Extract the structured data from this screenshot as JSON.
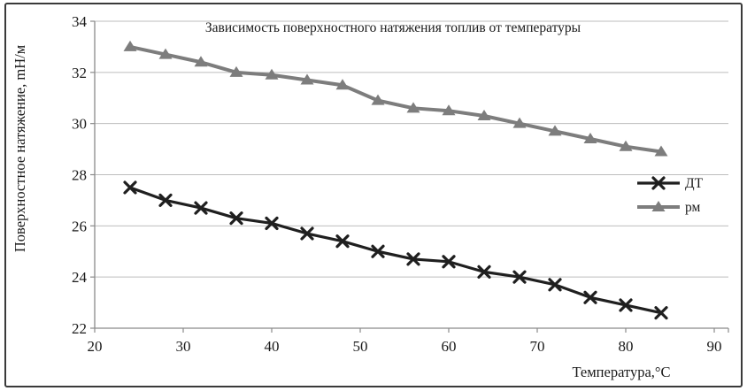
{
  "chart_data": {
    "type": "line",
    "title": "Зависимость поверхностного натяжения топлив от температуры",
    "xlabel": "Температура,°C",
    "ylabel": "Поверхностное натяжение, mH/м",
    "x": [
      24,
      28,
      32,
      36,
      40,
      44,
      48,
      52,
      56,
      60,
      64,
      68,
      72,
      76,
      80,
      84
    ],
    "series": [
      {
        "name": "ДТ",
        "marker": "x-cross",
        "color": "#1f1f1f",
        "line_width": 3.2,
        "values": [
          27.5,
          27.0,
          26.7,
          26.3,
          26.1,
          25.7,
          25.4,
          25.0,
          24.7,
          24.6,
          24.2,
          24.0,
          23.7,
          23.2,
          22.9,
          22.6
        ]
      },
      {
        "name": "рм",
        "marker": "triangle",
        "color": "#7d7d7d",
        "line_width": 4,
        "values": [
          33.0,
          32.7,
          32.4,
          32.0,
          31.9,
          31.7,
          31.5,
          30.9,
          30.6,
          30.5,
          30.3,
          30.0,
          29.7,
          29.4,
          29.1,
          28.9
        ]
      }
    ],
    "xticks": [
      20,
      30,
      40,
      50,
      60,
      70,
      80,
      90
    ],
    "yticks": [
      22,
      24,
      26,
      28,
      30,
      32,
      34
    ],
    "xlim": [
      20,
      91.6
    ],
    "ylim": [
      22,
      34
    ],
    "grid": "horizontal",
    "legend_position": "right"
  },
  "colors": {
    "grid": "#bdbdbd",
    "axis": "#8a8a8a",
    "text": "#1a1a1a",
    "frame": "#3a3a3a",
    "background": "#ffffff"
  }
}
